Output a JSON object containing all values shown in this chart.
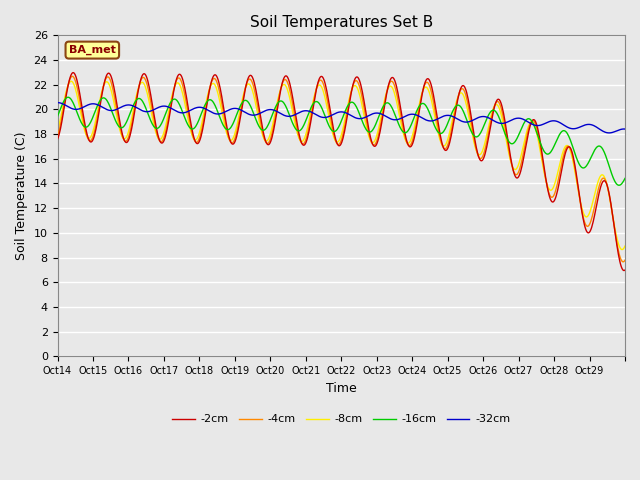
{
  "title": "Soil Temperatures Set B",
  "xlabel": "Time",
  "ylabel": "Soil Temperature (C)",
  "label_text": "BA_met",
  "ylim": [
    0,
    26
  ],
  "yticks": [
    0,
    2,
    4,
    6,
    8,
    10,
    12,
    14,
    16,
    18,
    20,
    22,
    24,
    26
  ],
  "xtick_labels": [
    "Oct 14",
    "Oct 15",
    "Oct 16",
    "Oct 17",
    "Oct 18",
    "Oct 19",
    "Oct 20",
    "Oct 21",
    "Oct 22",
    "Oct 23",
    "Oct 24",
    "Oct 25",
    "Oct 26",
    "Oct 27",
    "Oct 28",
    "Oct 29"
  ],
  "legend": [
    {
      "label": "-2cm",
      "color": "#cc0000"
    },
    {
      "label": "-4cm",
      "color": "#ff8800"
    },
    {
      "label": "-8cm",
      "color": "#ffee00"
    },
    {
      "label": "-16cm",
      "color": "#00cc00"
    },
    {
      "label": "-32cm",
      "color": "#0000cc"
    }
  ],
  "fig_bg_color": "#e8e8e8",
  "plot_bg_color": "#e8e8e8",
  "grid_color": "#ffffff",
  "line_width": 1.0,
  "n_days": 16,
  "pts_per_day": 48
}
